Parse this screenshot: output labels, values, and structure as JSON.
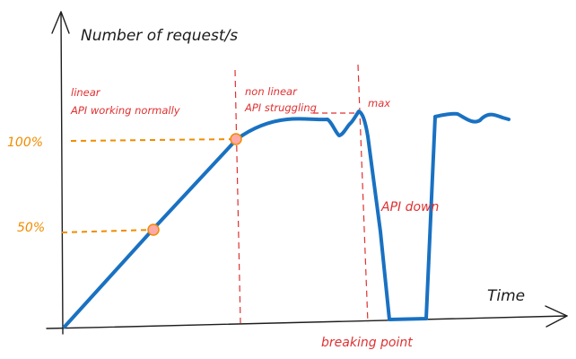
{
  "labels": {
    "y_axis": "Number of request/s",
    "x_axis": "Time",
    "tick_100": "100%",
    "tick_50": "50%",
    "phase1_line1": "linear",
    "phase1_line2": "API working normally",
    "phase2_line1": "non linear",
    "phase2_line2": "API struggling",
    "max": "max",
    "api_down": "API down",
    "breaking_point": "breaking point"
  },
  "colors": {
    "axis": "#1e1e1e",
    "curve": "#1971c2",
    "guides": "#e03131",
    "levels": "#f08c00",
    "markers_fill": "#ffa8a8"
  }
}
